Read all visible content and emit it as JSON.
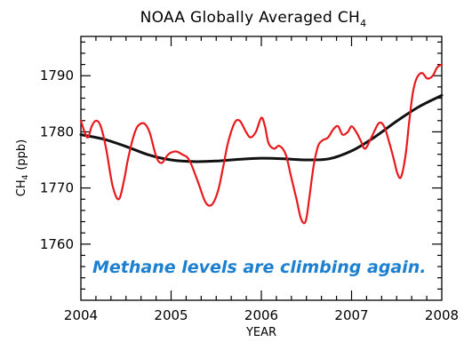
{
  "chart_data": {
    "type": "line",
    "title": "NOAA Globally Averaged CH",
    "title_subscript": "4",
    "xlabel": "YEAR",
    "ylabel": "CH",
    "ylabel_subscript": "4",
    "ylabel_unit": "(ppb)",
    "xlim": [
      2004,
      2008
    ],
    "ylim": [
      1750,
      1797
    ],
    "x_ticks": [
      "2004",
      "2005",
      "2006",
      "2007",
      "2008"
    ],
    "y_ticks": [
      "1760",
      "1770",
      "1780",
      "1790"
    ],
    "grid": false,
    "annotation": "Methane levels are climbing again.",
    "colors": {
      "monthly": "#e8191c",
      "trend": "#111111",
      "annotation": "#1d7fd0"
    },
    "series": [
      {
        "key": "monthly",
        "x": [
          2004.0,
          2004.04,
          2004.08,
          2004.12,
          2004.17,
          2004.22,
          2004.28,
          2004.35,
          2004.42,
          2004.48,
          2004.52,
          2004.58,
          2004.63,
          2004.7,
          2004.76,
          2004.81,
          2004.85,
          2004.9,
          2004.97,
          2005.05,
          2005.12,
          2005.2,
          2005.3,
          2005.38,
          2005.45,
          2005.52,
          2005.58,
          2005.63,
          2005.7,
          2005.76,
          2005.83,
          2005.88,
          2005.94,
          2006.0,
          2006.04,
          2006.08,
          2006.14,
          2006.2,
          2006.27,
          2006.33,
          2006.39,
          2006.44,
          2006.49,
          2006.53,
          2006.58,
          2006.63,
          2006.68,
          2006.74,
          2006.8,
          2006.85,
          2006.9,
          2006.96,
          2007.0,
          2007.05,
          2007.1,
          2007.15,
          2007.22,
          2007.3,
          2007.36,
          2007.42,
          2007.47,
          2007.51,
          2007.55,
          2007.6,
          2007.64,
          2007.68,
          2007.72,
          2007.78,
          2007.84,
          2007.9,
          2007.95,
          2008.0
        ],
        "values": [
          1782.0,
          1780.0,
          1779.0,
          1781.0,
          1782.0,
          1781.0,
          1777.0,
          1770.5,
          1768.0,
          1771.5,
          1775.0,
          1779.0,
          1781.0,
          1781.5,
          1780.0,
          1777.0,
          1775.0,
          1774.5,
          1776.0,
          1776.5,
          1776.0,
          1775.0,
          1771.0,
          1767.5,
          1767.0,
          1769.5,
          1774.0,
          1778.0,
          1781.5,
          1782.0,
          1780.0,
          1779.0,
          1780.0,
          1782.5,
          1781.0,
          1778.0,
          1777.0,
          1777.5,
          1776.0,
          1772.0,
          1768.0,
          1764.5,
          1764.0,
          1768.0,
          1774.0,
          1777.5,
          1778.5,
          1779.0,
          1780.5,
          1781.0,
          1779.5,
          1780.0,
          1781.0,
          1780.0,
          1778.5,
          1777.0,
          1779.0,
          1781.5,
          1781.0,
          1778.0,
          1775.0,
          1772.5,
          1772.0,
          1776.0,
          1782.0,
          1787.0,
          1789.5,
          1790.5,
          1789.5,
          1790.0,
          1791.5,
          1792.0
        ]
      },
      {
        "key": "trend",
        "x": [
          2004.0,
          2004.25,
          2004.5,
          2004.75,
          2005.0,
          2005.25,
          2005.5,
          2005.75,
          2006.0,
          2006.25,
          2006.5,
          2006.75,
          2007.0,
          2007.25,
          2007.5,
          2007.75,
          2008.0
        ],
        "values": [
          1779.5,
          1778.7,
          1777.4,
          1775.9,
          1775.0,
          1774.7,
          1774.8,
          1775.1,
          1775.3,
          1775.2,
          1775.0,
          1775.2,
          1776.6,
          1779.0,
          1781.9,
          1784.5,
          1786.5
        ]
      }
    ]
  }
}
